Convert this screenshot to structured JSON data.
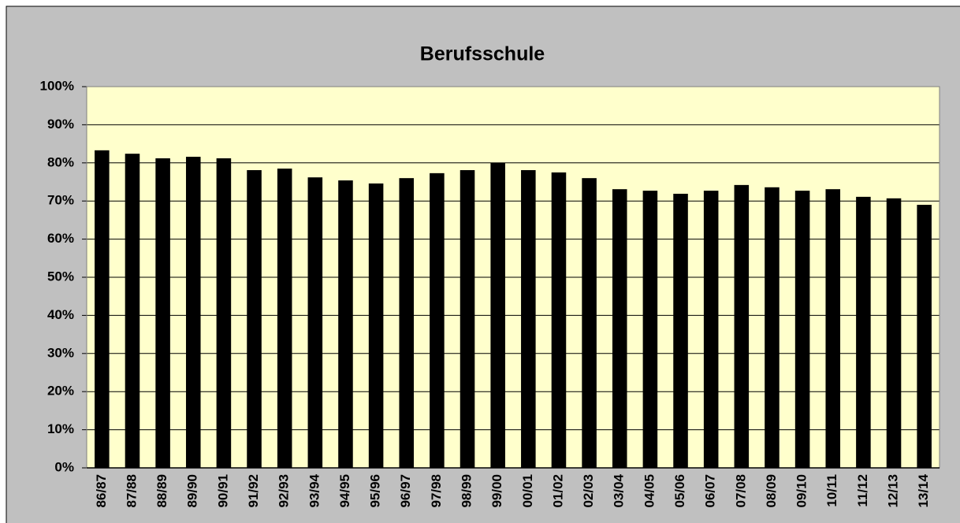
{
  "chart_data": {
    "type": "bar",
    "title": "Berufsschule",
    "categories": [
      "86/87",
      "87/88",
      "88/89",
      "89/90",
      "90/91",
      "91/92",
      "92/93",
      "93/94",
      "94/95",
      "95/96",
      "96/97",
      "97/98",
      "98/99",
      "99/00",
      "00/01",
      "01/02",
      "02/03",
      "03/04",
      "04/05",
      "05/06",
      "06/07",
      "07/08",
      "08/09",
      "09/10",
      "10/11",
      "11/12",
      "12/13",
      "13/14"
    ],
    "values": [
      83.3,
      82.4,
      81.2,
      81.6,
      81.2,
      78.1,
      78.5,
      76.2,
      75.4,
      74.6,
      76.0,
      77.3,
      78.1,
      80.0,
      78.1,
      77.5,
      76.0,
      73.1,
      72.7,
      71.9,
      72.7,
      74.2,
      73.6,
      72.7,
      73.1,
      71.1,
      70.7,
      69.0
    ],
    "color": "#000000",
    "ylim": [
      0,
      100
    ],
    "yticks": [
      {
        "value": 0,
        "label": "0%"
      },
      {
        "value": 10,
        "label": "10%"
      },
      {
        "value": 20,
        "label": "20%"
      },
      {
        "value": 30,
        "label": "30%"
      },
      {
        "value": 40,
        "label": "40%"
      },
      {
        "value": 50,
        "label": "50%"
      },
      {
        "value": 60,
        "label": "60%"
      },
      {
        "value": 70,
        "label": "70%"
      },
      {
        "value": 80,
        "label": "80%"
      },
      {
        "value": 90,
        "label": "90%"
      },
      {
        "value": 100,
        "label": "100%"
      }
    ],
    "grid": true
  }
}
